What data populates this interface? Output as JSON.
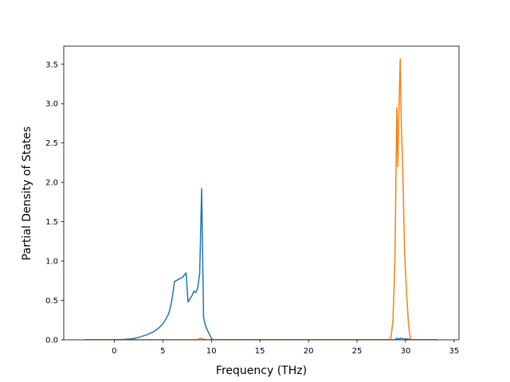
{
  "chart_data": {
    "type": "line",
    "title": "",
    "xlabel": "Frequency (THz)",
    "ylabel": "Partial Density of States",
    "xlim": [
      -5.2,
      35.5
    ],
    "ylim": [
      0,
      3.73
    ],
    "xticks": [
      0,
      5,
      10,
      15,
      20,
      25,
      30,
      35
    ],
    "yticks": [
      0.0,
      0.5,
      1.0,
      1.5,
      2.0,
      2.5,
      3.0,
      3.5
    ],
    "xtick_labels": [
      "0",
      "5",
      "10",
      "15",
      "20",
      "25",
      "30",
      "35"
    ],
    "ytick_labels": [
      "0.0",
      "0.5",
      "1.0",
      "1.5",
      "2.0",
      "2.5",
      "3.0",
      "3.5"
    ],
    "grid": false,
    "legend": "none",
    "series": [
      {
        "color": "#1f77b4",
        "x": [
          -3.1,
          0,
          1,
          2,
          2.5,
          3,
          3.5,
          4,
          4.5,
          5,
          5.3,
          5.6,
          5.8,
          6.0,
          6.2,
          6.5,
          6.8,
          7.0,
          7.2,
          7.4,
          7.6,
          7.8,
          8.0,
          8.2,
          8.4,
          8.6,
          8.8,
          9.0,
          9.2,
          9.4,
          9.6,
          9.8,
          10.0,
          10.2,
          11,
          15,
          20,
          25,
          28.9,
          29.1,
          29.3,
          29.5,
          29.8,
          30.2,
          30.5,
          33.3
        ],
        "y": [
          0,
          0,
          0.005,
          0.015,
          0.03,
          0.05,
          0.07,
          0.1,
          0.14,
          0.2,
          0.26,
          0.33,
          0.42,
          0.55,
          0.74,
          0.76,
          0.78,
          0.79,
          0.82,
          0.85,
          0.48,
          0.52,
          0.56,
          0.62,
          0.6,
          0.66,
          0.85,
          1.92,
          0.28,
          0.18,
          0.12,
          0.07,
          0.02,
          0,
          0,
          0,
          0,
          0,
          0,
          0.02,
          0.01,
          0.02,
          0.01,
          0.01,
          0,
          0
        ]
      },
      {
        "color": "#ff7f0e",
        "x": [
          -3.1,
          0,
          5,
          8.5,
          8.7,
          8.9,
          9.1,
          9.5,
          10,
          20,
          28.3,
          28.5,
          28.7,
          28.9,
          29.1,
          29.2,
          29.3,
          29.45,
          29.55,
          29.7,
          29.9,
          30.1,
          30.3,
          30.5,
          33.3
        ],
        "y": [
          0,
          0,
          0,
          0,
          0.01,
          0.02,
          0.01,
          0,
          0,
          0,
          0,
          0.03,
          0.25,
          1.0,
          2.95,
          2.2,
          2.85,
          3.57,
          2.8,
          2.2,
          1.1,
          0.6,
          0.2,
          0,
          0
        ]
      }
    ]
  }
}
